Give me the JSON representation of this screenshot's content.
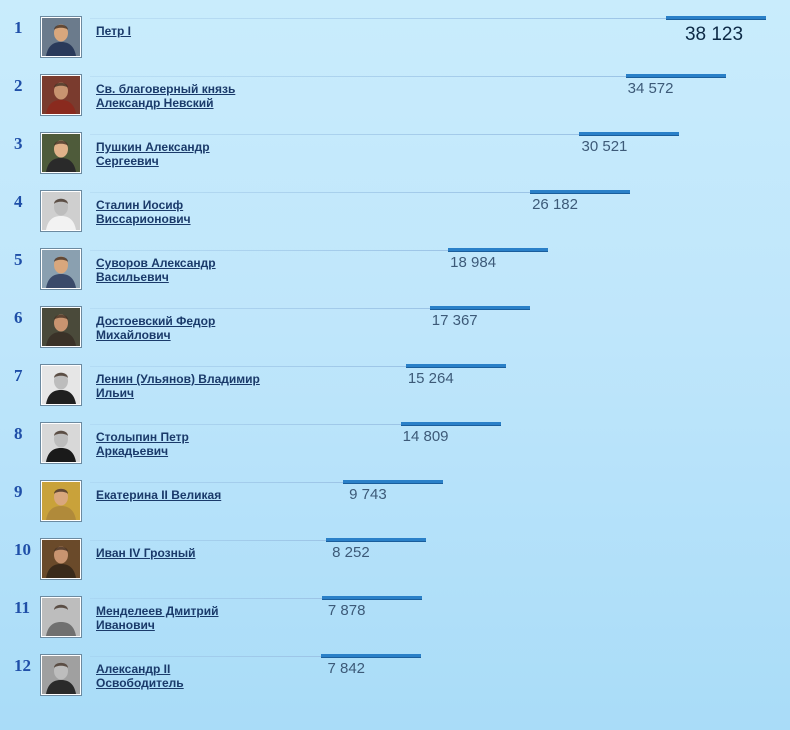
{
  "chart_data": {
    "type": "bar",
    "title": "",
    "orientation": "horizontal",
    "ranks": [
      "1",
      "2",
      "3",
      "4",
      "5",
      "6",
      "7",
      "8",
      "9",
      "10",
      "11",
      "12"
    ],
    "categories": [
      "Петр I",
      "Св. благоверный князь Александр Невский",
      "Пушкин Александр Сергеевич",
      "Сталин Иосиф Виссарионович",
      "Суворов Александр Васильевич",
      "Достоевский Федор Михайлович",
      "Ленин (Ульянов) Владимир Ильич",
      "Столыпин Петр Аркадьевич",
      "Екатерина II Великая",
      "Иван IV Грозный",
      "Менделеев Дмитрий Иванович",
      "Александр II Освободитель"
    ],
    "name_lines": [
      [
        "Петр I"
      ],
      [
        "Св. благоверный князь",
        "Александр Невский"
      ],
      [
        "Пушкин Александр",
        "Сергеевич"
      ],
      [
        "Сталин Иосиф",
        "Виссарионович"
      ],
      [
        "Суворов Александр",
        "Васильевич"
      ],
      [
        "Достоевский Федор",
        "Михайлович"
      ],
      [
        "Ленин (Ульянов) Владимир",
        "Ильич"
      ],
      [
        "Столыпин Петр",
        "Аркадьевич"
      ],
      [
        "Екатерина II Великая"
      ],
      [
        "Иван IV Грозный"
      ],
      [
        "Менделеев Дмитрий",
        "Иванович"
      ],
      [
        "Александр II",
        "Освободитель"
      ]
    ],
    "values": [
      38123,
      34572,
      30521,
      26182,
      18984,
      17367,
      15264,
      14809,
      9743,
      8252,
      7878,
      7842
    ],
    "value_labels": [
      "38 123",
      "34 572",
      "30 521",
      "26 182",
      "18 984",
      "17 367",
      "15 264",
      "14 809",
      "9 743",
      "8 252",
      "7 878",
      "7 842"
    ],
    "xlim": [
      0,
      38123
    ],
    "grid": false,
    "legend": "none"
  },
  "colors": {
    "bar": "#2a80c8",
    "rank": "#1f4fa8",
    "name": "#1a3a6a",
    "value": "#3d5a78",
    "value_top": "#0c2945",
    "background_top": "#c9ecfc",
    "background_bottom": "#a9dcf8"
  },
  "icons": [
    "portrait-icon"
  ]
}
